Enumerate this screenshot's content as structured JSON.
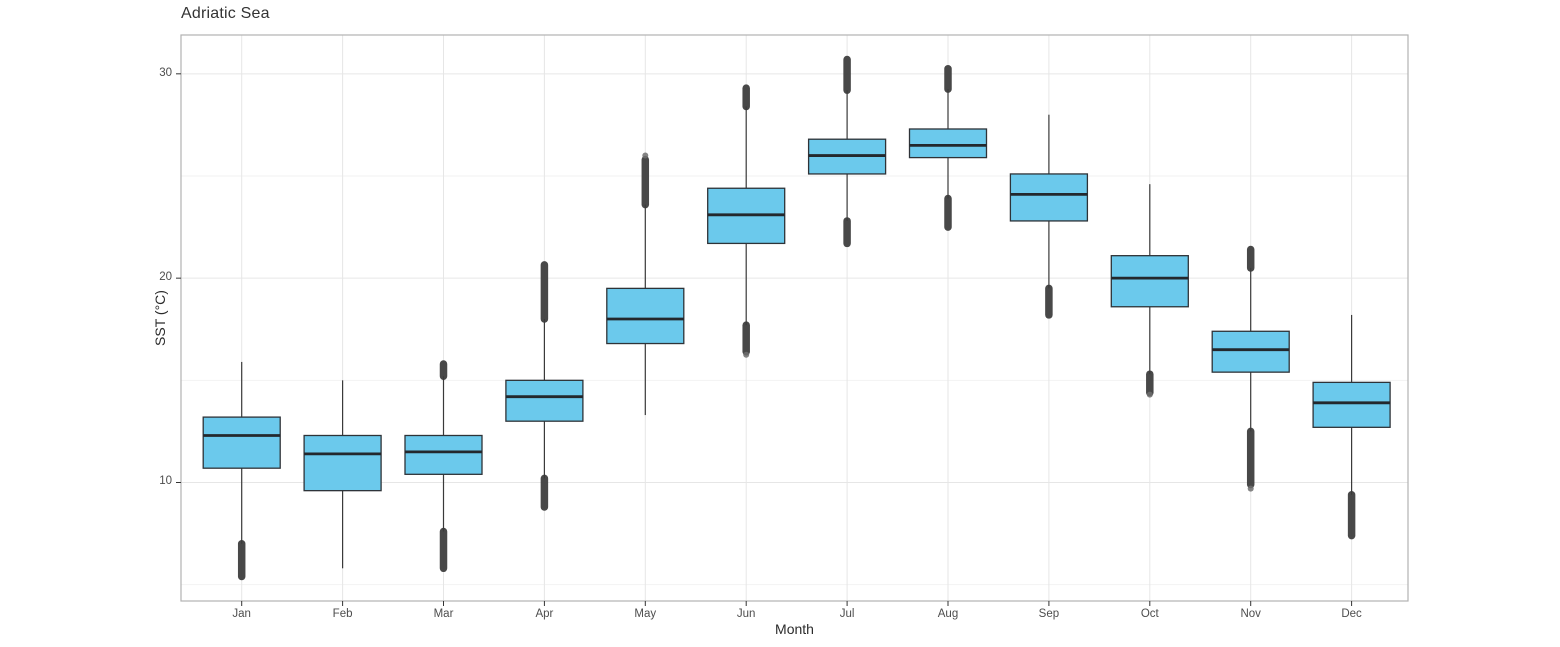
{
  "chart_data": {
    "type": "boxplot",
    "title": "Adriatic Sea",
    "xlabel": "Month",
    "ylabel": "SST (°C)",
    "categories": [
      "Jan",
      "Feb",
      "Mar",
      "Apr",
      "May",
      "Jun",
      "Jul",
      "Aug",
      "Sep",
      "Oct",
      "Nov",
      "Dec"
    ],
    "y_axis": {
      "ticks": [
        10,
        20,
        30
      ],
      "minor_ticks": [
        5,
        15,
        25
      ],
      "range": [
        4.2,
        31.9
      ],
      "grid": "on",
      "legend": "none"
    },
    "boxes": [
      {
        "label": "Jan",
        "q1": 10.7,
        "median": 12.3,
        "q3": 13.2,
        "whisker_low": 7.0,
        "whisker_high": 15.9,
        "outlier_runs": [
          [
            5.4,
            7.0
          ]
        ],
        "outlier_dots": []
      },
      {
        "label": "Feb",
        "q1": 9.6,
        "median": 11.4,
        "q3": 12.3,
        "whisker_low": 5.8,
        "whisker_high": 15.0,
        "outlier_runs": [],
        "outlier_dots": []
      },
      {
        "label": "Mar",
        "q1": 10.4,
        "median": 11.5,
        "q3": 12.3,
        "whisker_low": 7.6,
        "whisker_high": 15.2,
        "outlier_runs": [
          [
            5.8,
            7.6
          ],
          [
            15.2,
            15.8
          ]
        ],
        "outlier_dots": []
      },
      {
        "label": "Apr",
        "q1": 13.0,
        "median": 14.2,
        "q3": 15.0,
        "whisker_low": 10.2,
        "whisker_high": 18.0,
        "outlier_runs": [
          [
            8.8,
            10.2
          ],
          [
            18.0,
            20.65
          ]
        ],
        "outlier_dots": []
      },
      {
        "label": "May",
        "q1": 16.8,
        "median": 18.0,
        "q3": 19.5,
        "whisker_low": 13.3,
        "whisker_high": 23.6,
        "outlier_runs": [
          [
            23.6,
            25.8
          ]
        ],
        "outlier_dots": [
          26.0
        ]
      },
      {
        "label": "Jun",
        "q1": 21.7,
        "median": 23.1,
        "q3": 24.4,
        "whisker_low": 17.7,
        "whisker_high": 28.4,
        "outlier_runs": [
          [
            16.4,
            17.7
          ],
          [
            28.4,
            29.3
          ]
        ],
        "outlier_dots": [
          16.25
        ]
      },
      {
        "label": "Jul",
        "q1": 25.1,
        "median": 26.0,
        "q3": 26.8,
        "whisker_low": 22.8,
        "whisker_high": 29.2,
        "outlier_runs": [
          [
            21.7,
            22.8
          ],
          [
            29.2,
            30.7
          ]
        ],
        "outlier_dots": []
      },
      {
        "label": "Aug",
        "q1": 25.9,
        "median": 26.5,
        "q3": 27.3,
        "whisker_low": 23.9,
        "whisker_high": 29.25,
        "outlier_runs": [
          [
            22.5,
            23.9
          ],
          [
            29.25,
            30.25
          ]
        ],
        "outlier_dots": []
      },
      {
        "label": "Sep",
        "q1": 22.8,
        "median": 24.1,
        "q3": 25.1,
        "whisker_low": 19.5,
        "whisker_high": 28.0,
        "outlier_runs": [
          [
            18.2,
            19.5
          ]
        ],
        "outlier_dots": []
      },
      {
        "label": "Oct",
        "q1": 18.6,
        "median": 20.0,
        "q3": 21.1,
        "whisker_low": 15.3,
        "whisker_high": 24.6,
        "outlier_runs": [
          [
            14.4,
            15.3
          ]
        ],
        "outlier_dots": [
          14.3
        ]
      },
      {
        "label": "Nov",
        "q1": 15.4,
        "median": 16.5,
        "q3": 17.4,
        "whisker_low": 12.5,
        "whisker_high": 20.5,
        "outlier_runs": [
          [
            9.9,
            12.5
          ],
          [
            20.5,
            21.4
          ]
        ],
        "outlier_dots": [
          9.7
        ]
      },
      {
        "label": "Dec",
        "q1": 12.7,
        "median": 13.9,
        "q3": 14.9,
        "whisker_low": 9.4,
        "whisker_high": 18.2,
        "outlier_runs": [
          [
            7.4,
            9.4
          ]
        ],
        "outlier_dots": []
      }
    ],
    "style": {
      "box_fill": "#6BC9EC",
      "box_stroke": "#2E3338",
      "median_color": "#23282D",
      "whisker_color": "#3A3A3A",
      "outlier_color": "#3B3B3B",
      "outlier_dot_color": "#6E6E6E",
      "grid_major": "#E6E6E6",
      "grid_minor": "#F2F2F2",
      "panel_border": "#B2B2B2",
      "panel_background": "#FFFFFF",
      "tick_mark_color": "#333333",
      "tick_label_color": "#4D4D4D",
      "axis_title_color": "#2B2B2B",
      "title_color": "#333333"
    }
  }
}
